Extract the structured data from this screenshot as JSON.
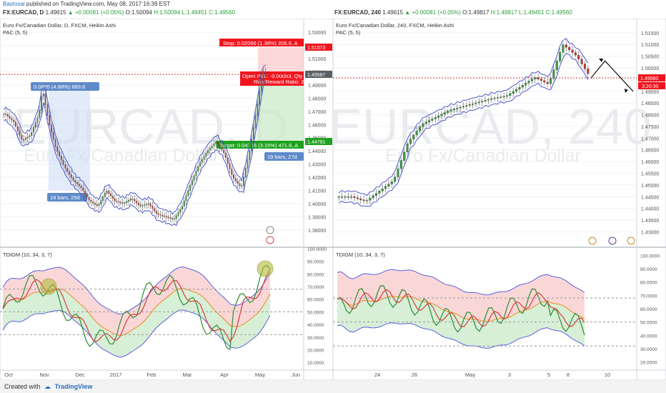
{
  "header": {
    "author": "Bastosai",
    "published_text": "published on TradingView.com, May 08, 2017 16:39 EST"
  },
  "left": {
    "sym_bar": {
      "symbol": "FX:EURCAD, D",
      "price": "1.49615",
      "change": "▲ +0.00081 (+0.05%)",
      "o": "O:1.50094",
      "h": "H:1.50094",
      "l": "L:1.49451",
      "c": "C:1.49560"
    },
    "legend_title": "Euro Fx/Canadian Dollar, D, FXCM, Heikin Ashi",
    "legend_pac": "PAC (5, 5)",
    "watermark_main": "EURCAD, D",
    "watermark_sub": "Euro Fx/Canadian Dollar",
    "stop_label": "Stop: 0.02066 (1.38%) 206.6, A",
    "open_pl_label": "Open P&L: -0.00053, Qty",
    "rr_label": "Risk/Reward Ratio: 2",
    "target_label": "Target: 0.04716 (3.15%) 471.6, A",
    "bars_label_right": "19 bars, 27d",
    "measure_label": "0.0685 (4.88%) 689.6",
    "bars_label_left": "19 bars, 25d",
    "price_tag_stop": "1.51573",
    "price_tag_current": "1.49587",
    "price_tag_target": "1.44791",
    "indicator_title": "TDIGM (10, 34, 3, 7)",
    "x_ticks": [
      "Oct",
      "Nov",
      "Dec",
      "2017",
      "Feb",
      "Mar",
      "Apr",
      "May",
      "Jun"
    ],
    "y_ticks": [
      "1.53000",
      "1.52000",
      "1.51000",
      "1.50000",
      "1.49000",
      "1.48000",
      "1.47000",
      "1.46000",
      "1.45000",
      "1.44000",
      "1.43000",
      "1.42000",
      "1.41000",
      "1.40000",
      "1.39000",
      "1.38000"
    ],
    "ind_ticks": [
      "100.0000",
      "90.0000",
      "80.0000",
      "70.0000",
      "60.0000",
      "50.0000",
      "40.0000",
      "30.0000",
      "20.0000",
      "10.0000"
    ]
  },
  "right": {
    "sym_bar": {
      "symbol": "FX:EURCAD, 240",
      "price": "1.49615",
      "change": "▲ +0.00081 (+0.05%)",
      "o": "O:1.49817",
      "h": "H:1.49817",
      "l": "L:1.49451",
      "c": "C:1.49560"
    },
    "legend_title": "Euro Fx/Canadian Dollar, 240, FXCM, Heikin Ashi",
    "legend_pac": "PAC (5, 5)",
    "watermark_main": "EURCAD, 240",
    "watermark_sub": "Euro Fx/Canadian Dollar",
    "price_tag_current": "1.49560",
    "countdown": "3:20:30",
    "indicator_title": "TDIGM (10, 34, 3, 7)",
    "x_ticks": [
      "24",
      "26",
      "May",
      "3",
      "5",
      "8",
      "10"
    ],
    "y_ticks": [
      "1.51500",
      "1.51000",
      "1.50500",
      "1.50000",
      "1.49500",
      "1.49000",
      "1.48500",
      "1.48000",
      "1.47500",
      "1.47000",
      "1.46500",
      "1.46000",
      "1.45500",
      "1.45000",
      "1.44500",
      "1.44000",
      "1.43500",
      "1.43000"
    ],
    "ind_ticks": [
      "100.0000",
      "90.0000",
      "80.0000",
      "70.0000",
      "60.0000",
      "50.0000",
      "40.0000",
      "30.0000",
      "20.0000"
    ]
  },
  "footer": {
    "created_with": "Created with",
    "brand": "TradingView"
  },
  "chart_data": [
    {
      "type": "candlestick",
      "title": "Euro Fx/Canadian Dollar, D, FXCM, Heikin Ashi",
      "ylim": [
        1.375,
        1.535
      ],
      "x_range": [
        "2016-10-01",
        "2017-06-05"
      ],
      "close_path": [
        [
          "2016-10-03",
          1.468
        ],
        [
          "2016-10-10",
          1.462
        ],
        [
          "2016-10-17",
          1.448
        ],
        [
          "2016-10-24",
          1.452
        ],
        [
          "2016-10-31",
          1.468
        ],
        [
          "2016-11-03",
          1.487
        ],
        [
          "2016-11-08",
          1.462
        ],
        [
          "2016-11-14",
          1.442
        ],
        [
          "2016-11-21",
          1.428
        ],
        [
          "2016-11-28",
          1.418
        ],
        [
          "2016-12-05",
          1.412
        ],
        [
          "2016-12-12",
          1.402
        ],
        [
          "2016-12-19",
          1.398
        ],
        [
          "2016-12-26",
          1.41
        ],
        [
          "2017-01-02",
          1.402
        ],
        [
          "2017-01-09",
          1.4
        ],
        [
          "2017-01-16",
          1.404
        ],
        [
          "2017-01-23",
          1.398
        ],
        [
          "2017-01-30",
          1.4
        ],
        [
          "2017-02-06",
          1.392
        ],
        [
          "2017-02-13",
          1.39
        ],
        [
          "2017-02-20",
          1.388
        ],
        [
          "2017-02-27",
          1.398
        ],
        [
          "2017-03-06",
          1.415
        ],
        [
          "2017-03-13",
          1.43
        ],
        [
          "2017-03-20",
          1.44
        ],
        [
          "2017-03-27",
          1.447
        ],
        [
          "2017-04-03",
          1.438
        ],
        [
          "2017-04-10",
          1.42
        ],
        [
          "2017-04-17",
          1.412
        ],
        [
          "2017-04-24",
          1.44
        ],
        [
          "2017-05-01",
          1.478
        ],
        [
          "2017-05-05",
          1.501
        ],
        [
          "2017-05-08",
          1.4956
        ]
      ],
      "series": [
        {
          "name": "PAC (5, 5)"
        }
      ]
    },
    {
      "type": "line",
      "title": "TDIGM (10, 34, 3, 7)",
      "ylim": [
        5,
        100
      ],
      "levels": [
        68,
        50,
        32
      ],
      "peak_markers": [
        {
          "x": "2016-11-03",
          "y": 75
        },
        {
          "x": "2017-05-05",
          "y": 86
        }
      ]
    },
    {
      "type": "candlestick",
      "title": "Euro Fx/Canadian Dollar, 240, FXCM, Heikin Ashi",
      "ylim": [
        1.428,
        1.518
      ],
      "x_range": [
        "2017-04-20",
        "2017-05-11"
      ],
      "close_path": [
        [
          "2017-04-21",
          1.445
        ],
        [
          "2017-04-22",
          1.443
        ],
        [
          "2017-04-24",
          1.452
        ],
        [
          "2017-04-25",
          1.468
        ],
        [
          "2017-04-26",
          1.476
        ],
        [
          "2017-04-27",
          1.479
        ],
        [
          "2017-04-28",
          1.482
        ],
        [
          "2017-05-01",
          1.487
        ],
        [
          "2017-05-02",
          1.488
        ],
        [
          "2017-05-03",
          1.492
        ],
        [
          "2017-05-04",
          1.496
        ],
        [
          "2017-05-05",
          1.493
        ],
        [
          "2017-05-06",
          1.51
        ],
        [
          "2017-05-07",
          1.505
        ],
        [
          "2017-05-08",
          1.4956
        ]
      ],
      "projection": [
        [
          "2017-05-08",
          1.4956
        ],
        [
          "2017-05-09",
          1.503
        ],
        [
          "2017-05-11",
          1.49
        ]
      ],
      "series": [
        {
          "name": "PAC (5, 5)"
        }
      ]
    },
    {
      "type": "line",
      "title": "TDIGM (10, 34, 3, 7)",
      "ylim": [
        15,
        105
      ],
      "levels": [
        68,
        50,
        32
      ]
    }
  ],
  "colors": {
    "bull": "#3a9c45",
    "bear": "#c73a3a",
    "pac": "#4a54c7",
    "tdi_upper_fill": "#f9d7d7",
    "tdi_lower_fill": "#d7efd7",
    "stop_red": "#f0141e",
    "target_green": "#1ea31e",
    "measure_blue": "#5f8ac9"
  }
}
